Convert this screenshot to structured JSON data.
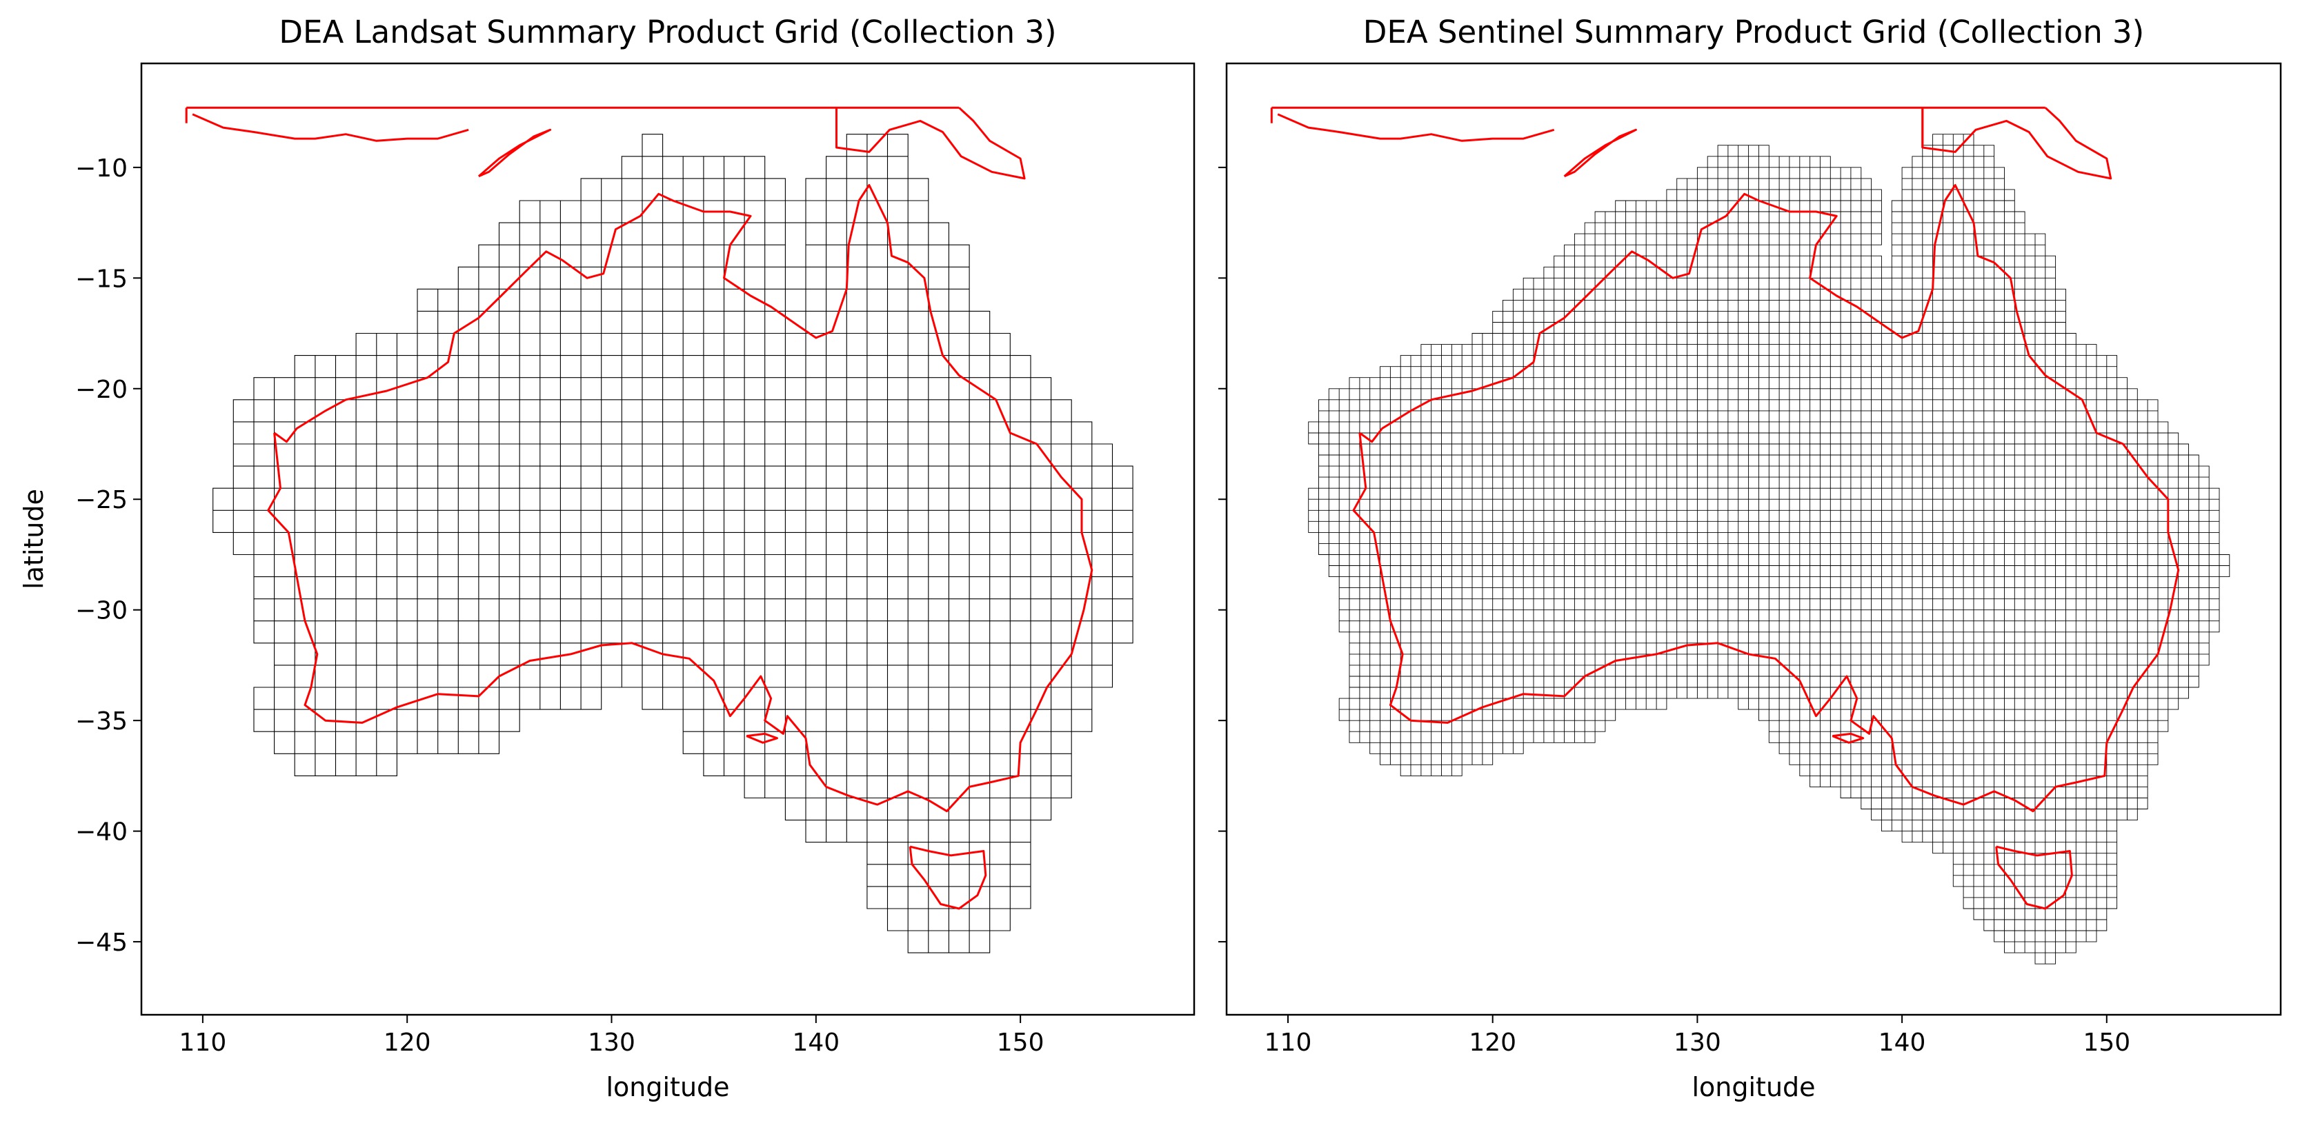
{
  "figure": {
    "panels": [
      {
        "title": "DEA Landsat Summary Product Grid (Collection 3)",
        "xlabel": "longitude",
        "ylabel": "latitude",
        "grid_type": "landsat"
      },
      {
        "title": "DEA Sentinel Summary Product Grid (Collection 3)",
        "xlabel": "longitude",
        "ylabel": "",
        "grid_type": "sentinel"
      }
    ]
  },
  "chart_data": [
    {
      "type": "map",
      "title": "DEA Landsat Summary Product Grid (Collection 3)",
      "xlabel": "longitude",
      "ylabel": "latitude",
      "xlim": [
        107,
        158.5
      ],
      "ylim": [
        -48.3,
        -5.3
      ],
      "xticks": [
        110,
        120,
        130,
        140,
        150
      ],
      "yticks": [
        -10,
        -15,
        -20,
        -25,
        -30,
        -35,
        -40,
        -45
      ],
      "tile_size_deg": 1.0,
      "grid_on": false,
      "colors": {
        "tiles": "#000000",
        "coastline": "#ff0000"
      }
    },
    {
      "type": "map",
      "title": "DEA Sentinel Summary Product Grid (Collection 3)",
      "xlabel": "longitude",
      "ylabel": "",
      "xlim": [
        107,
        158.5
      ],
      "ylim": [
        -48.3,
        -5.3
      ],
      "xticks": [
        110,
        120,
        130,
        140,
        150
      ],
      "yticks": [
        -10,
        -15,
        -20,
        -25,
        -30,
        -35,
        -40,
        -45
      ],
      "tile_size_deg": 0.5,
      "grid_on": false,
      "colors": {
        "tiles": "#000000",
        "coastline": "#ff0000"
      }
    }
  ]
}
